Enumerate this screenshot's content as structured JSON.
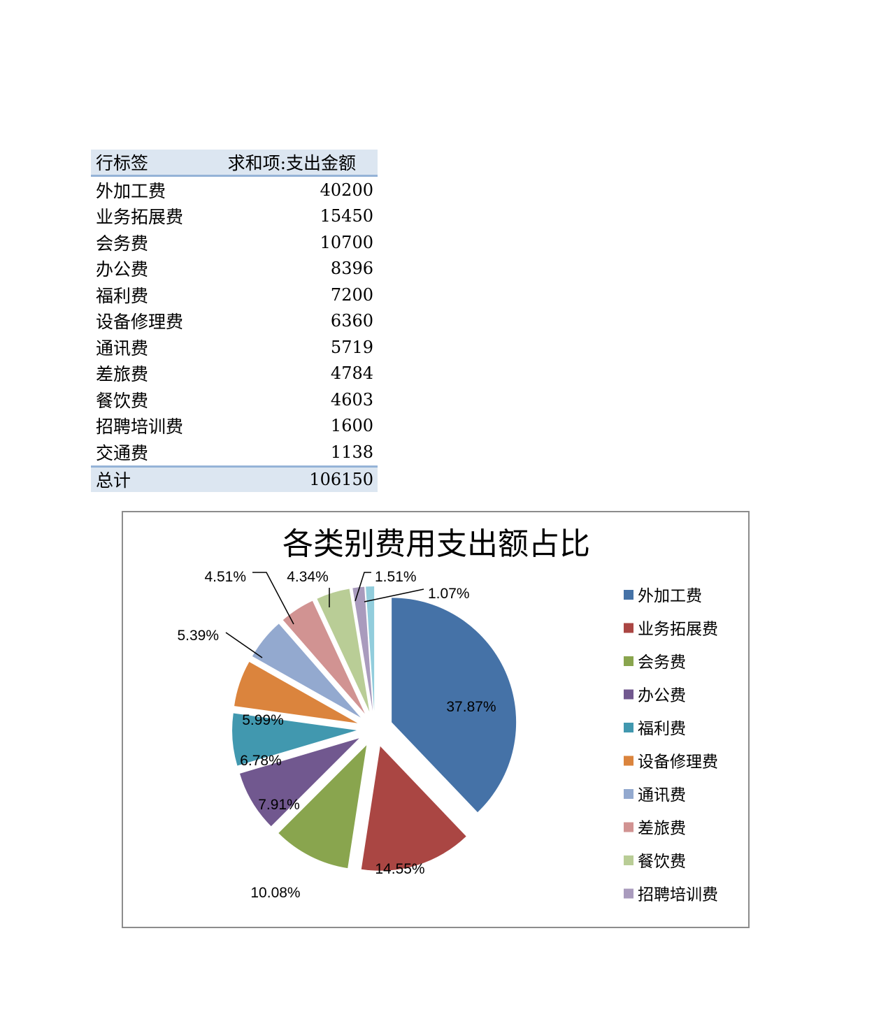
{
  "table": {
    "header_label": "行标签",
    "header_value": "求和项:支出金额",
    "rows": [
      {
        "label": "外加工费",
        "value": "40200"
      },
      {
        "label": "业务拓展费",
        "value": "15450"
      },
      {
        "label": "会务费",
        "value": "10700"
      },
      {
        "label": "办公费",
        "value": "8396"
      },
      {
        "label": "福利费",
        "value": "7200"
      },
      {
        "label": "设备修理费",
        "value": "6360"
      },
      {
        "label": "通讯费",
        "value": "5719"
      },
      {
        "label": "差旅费",
        "value": "4784"
      },
      {
        "label": "餐饮费",
        "value": "4603"
      },
      {
        "label": "招聘培训费",
        "value": "1600"
      },
      {
        "label": "交通费",
        "value": "1138"
      }
    ],
    "total_label": "总计",
    "total_value": "106150"
  },
  "chart_data": {
    "type": "pie",
    "title": "各类别费用支出额占比",
    "categories": [
      "外加工费",
      "业务拓展费",
      "会务费",
      "办公费",
      "福利费",
      "设备修理费",
      "通讯费",
      "差旅费",
      "餐饮费",
      "招聘培训费",
      "交通费"
    ],
    "values": [
      40200,
      15450,
      10700,
      8396,
      7200,
      6360,
      5719,
      4784,
      4603,
      1600,
      1138
    ],
    "labels": [
      "37.87%",
      "14.55%",
      "10.08%",
      "7.91%",
      "6.78%",
      "5.99%",
      "5.39%",
      "4.51%",
      "4.34%",
      "1.51%",
      "1.07%"
    ],
    "colors": [
      "#4572a7",
      "#aa4643",
      "#89a54e",
      "#71588f",
      "#4198af",
      "#db843d",
      "#93a9cf",
      "#d19392",
      "#b9cd96",
      "#a99bbd",
      "#92cddc"
    ],
    "legend": {
      "position": "right",
      "entries": [
        "外加工费",
        "业务拓展费",
        "会务费",
        "办公费",
        "福利费",
        "设备修理费",
        "通讯费",
        "差旅费",
        "餐饮费",
        "招聘培训费"
      ]
    },
    "exploded": true
  }
}
